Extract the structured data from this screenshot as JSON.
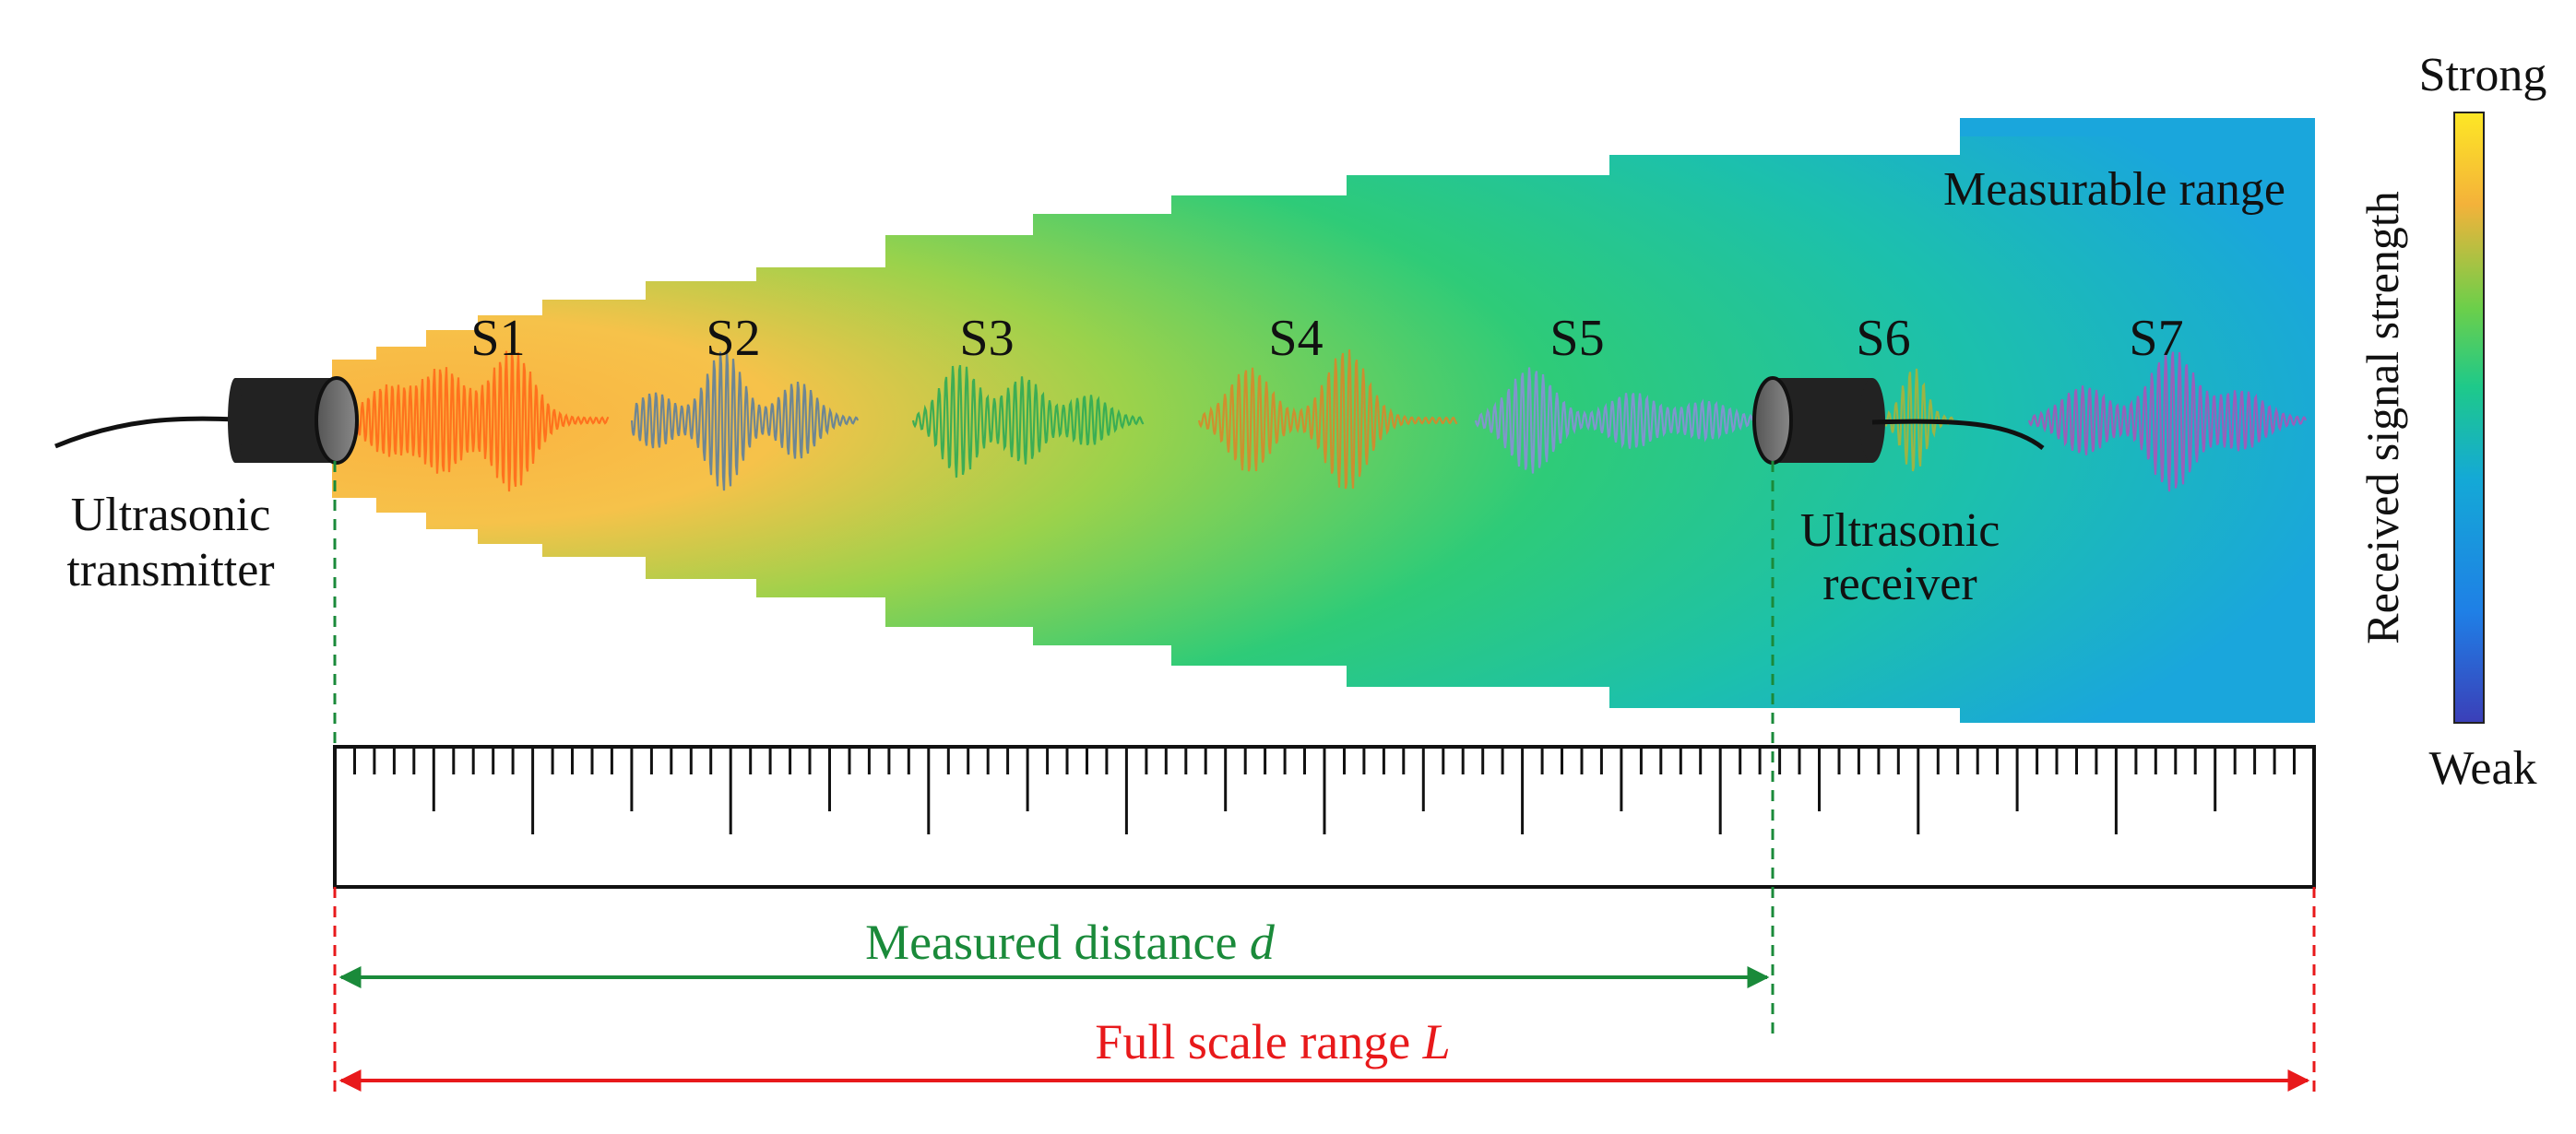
{
  "signals": [
    {
      "label": "S1",
      "color": "#ff6a1a"
    },
    {
      "label": "S2",
      "color": "#5f7f9b"
    },
    {
      "label": "S3",
      "color": "#2faa55"
    },
    {
      "label": "S4",
      "color": "#d8872a"
    },
    {
      "label": "S5",
      "color": "#8a8fd6"
    },
    {
      "label": "S6",
      "color": "#a9b23a"
    },
    {
      "label": "S7",
      "color": "#a855b8"
    }
  ],
  "transmitter": {
    "line1": "Ultrasonic",
    "line2": "transmitter"
  },
  "receiver": {
    "line1": "Ultrasonic",
    "line2": "receiver"
  },
  "measurable_range_label": "Measurable range",
  "colorbar": {
    "top_label": "Strong",
    "bottom_label": "Weak",
    "axis_label": "Received signal strength",
    "colors": [
      "#3b3fb8",
      "#1f7fe6",
      "#14a9d6",
      "#1ec98a",
      "#6ccf4a",
      "#f4b23a",
      "#fde725"
    ]
  },
  "measured_distance": {
    "text": "Measured distance ",
    "symbol": "d",
    "color": "#1a8a3a"
  },
  "full_scale": {
    "text": "Full scale range ",
    "symbol": "L",
    "color": "#e8191b"
  }
}
